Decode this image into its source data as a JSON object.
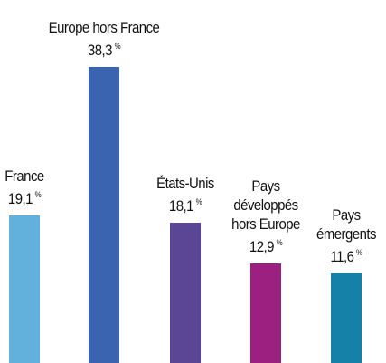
{
  "chart_data": {
    "type": "bar",
    "categories": [
      "France",
      "Europe hors France",
      "États-Unis",
      "Pays\ndéveloppés\nhors Europe",
      "Pays\némergents"
    ],
    "values": [
      19.1,
      38.3,
      18.1,
      12.9,
      11.6
    ],
    "value_labels": [
      "19,1",
      "38,3",
      "18,1",
      "12,9",
      "11,6"
    ],
    "unit": "%",
    "colors": [
      "#62b0dc",
      "#3a64b0",
      "#5b4696",
      "#9b2080",
      "#1581a8"
    ]
  }
}
